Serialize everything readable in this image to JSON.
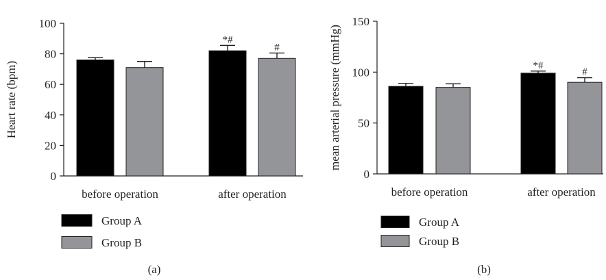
{
  "chart_data": [
    {
      "type": "bar",
      "panel_label": "(a)",
      "ylabel": "Heart rate (bpm)",
      "ylim": [
        0,
        100
      ],
      "yticks": [
        0,
        20,
        40,
        60,
        80,
        100
      ],
      "categories": [
        "before operation",
        "after operation"
      ],
      "series": [
        {
          "name": "Group A",
          "color": "#000000",
          "values": [
            76,
            82
          ],
          "errors": [
            1.5,
            3.5
          ],
          "annotations": [
            "",
            "*#"
          ]
        },
        {
          "name": "Group B",
          "color": "#939598",
          "values": [
            71,
            77
          ],
          "errors": [
            4,
            3.5
          ],
          "annotations": [
            "",
            "#"
          ]
        }
      ],
      "legend_position": "bottom-left",
      "grid": false
    },
    {
      "type": "bar",
      "panel_label": "(b)",
      "ylabel": "mean arterial pressure (mmHg)",
      "ylim": [
        0,
        150
      ],
      "yticks": [
        0,
        50,
        100,
        150
      ],
      "categories": [
        "before operation",
        "after operation"
      ],
      "series": [
        {
          "name": "Group A",
          "color": "#000000",
          "values": [
            86,
            99
          ],
          "errors": [
            3,
            2
          ],
          "annotations": [
            "",
            "*#"
          ]
        },
        {
          "name": "Group B",
          "color": "#939598",
          "values": [
            85,
            90
          ],
          "errors": [
            3.5,
            4.5
          ],
          "annotations": [
            "",
            "#"
          ]
        }
      ],
      "legend_position": "bottom-left",
      "grid": false
    }
  ]
}
